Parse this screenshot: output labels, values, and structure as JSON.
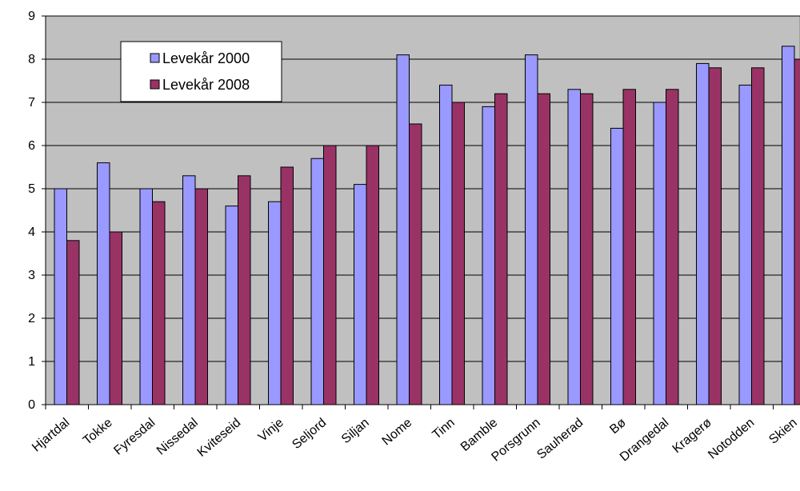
{
  "chart_data": {
    "type": "bar",
    "title": "",
    "xlabel": "",
    "ylabel": "",
    "categories": [
      "Hjartdal",
      "Tokke",
      "Fyresdal",
      "Nissedal",
      "Kviteseid",
      "Vinje",
      "Seljord",
      "Siljan",
      "Nome",
      "Tinn",
      "Bamble",
      "Porsgrunn",
      "Sauherad",
      "Bø",
      "Drangedal",
      "Kragerø",
      "Notodden",
      "Skien"
    ],
    "series": [
      {
        "name": "Levekår 2000",
        "color": "#9999ff",
        "values": [
          5.0,
          5.6,
          5.0,
          5.3,
          4.6,
          4.7,
          5.7,
          5.1,
          8.1,
          7.4,
          6.9,
          8.1,
          7.3,
          6.4,
          7.0,
          7.9,
          7.4,
          8.3
        ]
      },
      {
        "name": "Levekår 2008",
        "color": "#993366",
        "values": [
          3.8,
          4.0,
          4.7,
          5.0,
          5.3,
          5.5,
          6.0,
          6.0,
          6.5,
          7.0,
          7.2,
          7.2,
          7.2,
          7.3,
          7.3,
          7.8,
          7.8,
          8.0
        ]
      }
    ],
    "ylim": [
      0,
      9
    ],
    "yticks": [
      "0",
      "1",
      "2",
      "3",
      "4",
      "5",
      "6",
      "7",
      "8",
      "9"
    ],
    "grid": true,
    "plot_background": "#c0c0c0",
    "legend_position": "top-left"
  }
}
